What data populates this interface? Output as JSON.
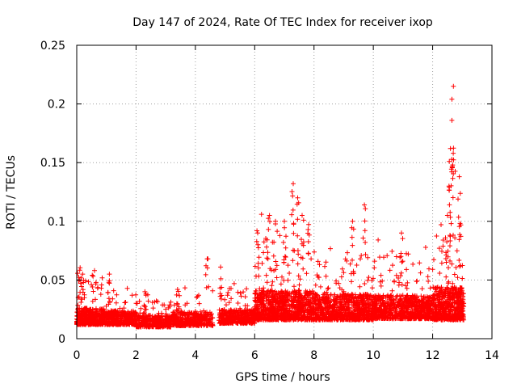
{
  "chart_data": {
    "type": "scatter",
    "title": "Day 147 of 2024, Rate Of TEC Index for receiver ixop",
    "xlabel": "GPS time / hours",
    "ylabel": "ROTI / TECUs",
    "xlim": [
      0,
      14
    ],
    "ylim": [
      0,
      0.25
    ],
    "grid": true,
    "marker": "+",
    "color": "#ff0000",
    "x_ticks": [
      0,
      2,
      4,
      6,
      8,
      10,
      12,
      14
    ],
    "x_tick_labels": [
      "0",
      "2",
      "4",
      "6",
      "8",
      "10",
      "12",
      "14"
    ],
    "y_ticks": [
      0,
      0.05,
      0.1,
      0.15,
      0.2,
      0.25
    ],
    "y_tick_labels": [
      "0",
      "0.05",
      "0.1",
      "0.15",
      "0.2",
      "0.25"
    ],
    "data_gap_hours": [
      4.6,
      4.8
    ],
    "x_range_observed": [
      0.0,
      13.05
    ],
    "notable_points": [
      {
        "x": 0.1,
        "y": 0.05
      },
      {
        "x": 0.2,
        "y": 0.055
      },
      {
        "x": 0.6,
        "y": 0.058
      },
      {
        "x": 1.1,
        "y": 0.055
      },
      {
        "x": 2.3,
        "y": 0.04
      },
      {
        "x": 3.4,
        "y": 0.042
      },
      {
        "x": 4.4,
        "y": 0.068
      },
      {
        "x": 4.85,
        "y": 0.061
      },
      {
        "x": 6.1,
        "y": 0.09
      },
      {
        "x": 6.5,
        "y": 0.105
      },
      {
        "x": 6.7,
        "y": 0.1
      },
      {
        "x": 7.0,
        "y": 0.1
      },
      {
        "x": 7.3,
        "y": 0.132
      },
      {
        "x": 7.45,
        "y": 0.12
      },
      {
        "x": 7.6,
        "y": 0.105
      },
      {
        "x": 7.8,
        "y": 0.093
      },
      {
        "x": 9.3,
        "y": 0.1
      },
      {
        "x": 9.7,
        "y": 0.114
      },
      {
        "x": 10.95,
        "y": 0.09
      },
      {
        "x": 12.5,
        "y": 0.105
      },
      {
        "x": 12.55,
        "y": 0.13
      },
      {
        "x": 12.6,
        "y": 0.162
      },
      {
        "x": 12.65,
        "y": 0.186
      },
      {
        "x": 12.65,
        "y": 0.204
      },
      {
        "x": 12.7,
        "y": 0.215
      },
      {
        "x": 12.9,
        "y": 0.138
      },
      {
        "x": 12.95,
        "y": 0.097
      }
    ],
    "segments": [
      {
        "start": 0.0,
        "end": 1.0,
        "base": 0.012,
        "spread": 0.014,
        "max_extra": 0.04,
        "density": 420
      },
      {
        "start": 1.0,
        "end": 2.0,
        "base": 0.012,
        "spread": 0.012,
        "max_extra": 0.025,
        "density": 380
      },
      {
        "start": 2.0,
        "end": 3.2,
        "base": 0.01,
        "spread": 0.01,
        "max_extra": 0.02,
        "density": 380
      },
      {
        "start": 3.2,
        "end": 4.6,
        "base": 0.011,
        "spread": 0.012,
        "max_extra": 0.03,
        "density": 400
      },
      {
        "start": 4.8,
        "end": 6.0,
        "base": 0.013,
        "spread": 0.012,
        "max_extra": 0.03,
        "density": 420
      },
      {
        "start": 6.0,
        "end": 8.0,
        "base": 0.016,
        "spread": 0.025,
        "max_extra": 0.07,
        "density": 900
      },
      {
        "start": 8.0,
        "end": 10.0,
        "base": 0.016,
        "spread": 0.022,
        "max_extra": 0.05,
        "density": 800
      },
      {
        "start": 10.0,
        "end": 12.0,
        "base": 0.017,
        "spread": 0.02,
        "max_extra": 0.05,
        "density": 800
      },
      {
        "start": 12.0,
        "end": 13.05,
        "base": 0.016,
        "spread": 0.028,
        "max_extra": 0.07,
        "density": 550
      }
    ]
  }
}
